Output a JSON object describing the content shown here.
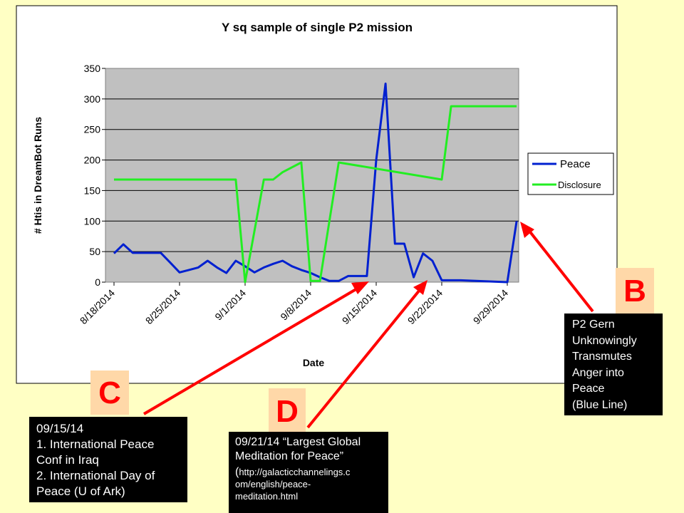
{
  "chart_data": {
    "type": "line",
    "title": "Y sq sample of single P2 mission",
    "xlabel": "Date",
    "ylabel": "# Htis in DreamBot Runs",
    "ylim": [
      0,
      350
    ],
    "yticks": [
      0,
      50,
      100,
      150,
      200,
      250,
      300,
      350
    ],
    "x_tick_labels": [
      "8/18/2014",
      "8/25/2014",
      "9/1/2014",
      "9/8/2014",
      "9/15/2014",
      "9/22/2014",
      "9/29/2014"
    ],
    "x_start": "8/18/2014",
    "x_end": "9/29/2014",
    "grid": true,
    "legend_position": "right",
    "series": [
      {
        "name": "Peace",
        "color": "#0020d0",
        "x": [
          "8/18/2014",
          "8/19/2014",
          "8/20/2014",
          "8/21/2014",
          "8/22/2014",
          "8/23/2014",
          "8/24/2014",
          "8/25/2014",
          "8/26/2014",
          "8/27/2014",
          "8/28/2014",
          "8/29/2014",
          "8/30/2014",
          "8/31/2014",
          "9/1/2014",
          "9/2/2014",
          "9/3/2014",
          "9/4/2014",
          "9/5/2014",
          "9/6/2014",
          "9/7/2014",
          "9/8/2014",
          "9/9/2014",
          "9/10/2014",
          "9/11/2014",
          "9/12/2014",
          "9/13/2014",
          "9/14/2014",
          "9/15/2014",
          "9/16/2014",
          "9/17/2014",
          "9/18/2014",
          "9/19/2014",
          "9/20/2014",
          "9/21/2014",
          "9/22/2014",
          "9/23/2014",
          "9/24/2014",
          "9/29/2014",
          "9/30/2014"
        ],
        "y": [
          47,
          62,
          48,
          48,
          48,
          48,
          32,
          16,
          20,
          24,
          35,
          24,
          15,
          35,
          26,
          16,
          24,
          30,
          35,
          26,
          20,
          15,
          8,
          2,
          2,
          10,
          10,
          10,
          200,
          325,
          63,
          63,
          8,
          47,
          35,
          3,
          3,
          3,
          0,
          100
        ]
      },
      {
        "name": "Disclosure",
        "color": "#22ee22",
        "x": [
          "8/18/2014",
          "8/31/2014",
          "9/1/2014",
          "9/3/2014",
          "9/4/2014",
          "9/5/2014",
          "9/7/2014",
          "9/8/2014",
          "9/9/2014",
          "9/10/2014",
          "9/11/2014",
          "9/22/2014",
          "9/23/2014",
          "9/30/2014"
        ],
        "y": [
          168,
          168,
          0,
          168,
          168,
          180,
          196,
          2,
          2,
          100,
          196,
          168,
          288,
          288
        ]
      }
    ]
  },
  "annotations": {
    "C": {
      "letter": "C",
      "lines": [
        "09/15/14",
        "1. International Peace",
        "Conf in Iraq",
        "2. International Day of",
        "Peace (U of Ark)"
      ]
    },
    "D": {
      "letter": "D",
      "lines": [
        "09/21/14 “Largest Global",
        "Meditation for Peace”"
      ],
      "url_lines": [
        "http://galacticchannelings.c",
        "om/english/peace-",
        "meditation.html"
      ]
    },
    "B": {
      "letter": "B",
      "lines": [
        "P2 Gern",
        "Unknowingly",
        "Transmutes",
        "Anger into",
        "Peace",
        "(Blue Line)"
      ]
    }
  },
  "colors": {
    "background": "#ffffc4",
    "plot_area": "#c0c0c0",
    "arrow": "#ff0000",
    "letter_box": "#ffd8a8"
  }
}
